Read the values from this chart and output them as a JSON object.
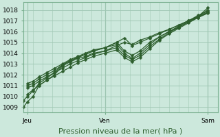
{
  "title": "",
  "xlabel": "Pression niveau de la mer( hPa )",
  "ylabel": "",
  "bg_color": "#cce8dc",
  "grid_color": "#a0c8b4",
  "line_color": "#2d5e2d",
  "xlim": [
    0,
    100
  ],
  "ylim": [
    1008.5,
    1018.7
  ],
  "yticks": [
    1009,
    1010,
    1011,
    1012,
    1013,
    1014,
    1015,
    1016,
    1017,
    1018
  ],
  "xtick_positions": [
    2,
    42,
    95
  ],
  "xtick_labels": [
    "Jeu",
    "Ven",
    "Sam"
  ],
  "vlines": [
    2,
    42,
    95
  ],
  "series": [
    {
      "x": [
        0,
        2,
        5,
        8,
        12,
        16,
        20,
        24,
        28,
        32,
        36,
        42,
        48,
        52,
        56,
        60,
        65,
        70,
        75,
        80,
        85,
        90,
        95
      ],
      "y": [
        1009.0,
        1009.5,
        1010.0,
        1011.0,
        1011.5,
        1012.0,
        1012.8,
        1013.2,
        1013.5,
        1013.7,
        1014.0,
        1014.2,
        1014.7,
        1015.0,
        1014.8,
        1015.2,
        1015.5,
        1015.9,
        1016.2,
        1016.6,
        1017.0,
        1017.4,
        1017.8
      ]
    },
    {
      "x": [
        0,
        2,
        5,
        8,
        12,
        16,
        20,
        24,
        28,
        32,
        36,
        42,
        48,
        52,
        56,
        60,
        65,
        70,
        75,
        80,
        85,
        90,
        95
      ],
      "y": [
        1009.6,
        1010.0,
        1010.5,
        1011.2,
        1011.7,
        1012.2,
        1012.9,
        1013.3,
        1013.6,
        1013.9,
        1014.2,
        1014.5,
        1015.0,
        1015.4,
        1014.7,
        1015.0,
        1015.4,
        1015.8,
        1016.2,
        1016.6,
        1017.0,
        1017.5,
        1017.9
      ]
    },
    {
      "x": [
        2,
        5,
        8,
        12,
        16,
        20,
        24,
        28,
        32,
        36,
        42,
        48,
        52,
        56,
        60,
        65,
        70,
        75,
        80,
        85,
        90,
        95
      ],
      "y": [
        1011.0,
        1011.2,
        1011.6,
        1012.0,
        1012.4,
        1012.9,
        1013.3,
        1013.6,
        1013.9,
        1014.2,
        1014.5,
        1015.0,
        1014.2,
        1013.8,
        1014.2,
        1015.0,
        1015.5,
        1016.0,
        1016.4,
        1016.9,
        1017.3,
        1017.7
      ]
    },
    {
      "x": [
        2,
        5,
        8,
        12,
        16,
        20,
        24,
        28,
        32,
        36,
        42,
        48,
        52,
        56,
        60,
        65,
        70,
        75,
        80,
        85,
        90,
        95
      ],
      "y": [
        1011.2,
        1011.4,
        1011.8,
        1012.2,
        1012.6,
        1013.0,
        1013.4,
        1013.7,
        1014.0,
        1014.3,
        1014.5,
        1014.8,
        1014.0,
        1013.5,
        1014.0,
        1014.8,
        1015.5,
        1016.0,
        1016.5,
        1017.0,
        1017.4,
        1018.0
      ]
    },
    {
      "x": [
        2,
        5,
        8,
        12,
        16,
        20,
        24,
        28,
        32,
        36,
        42,
        48,
        52,
        56,
        60,
        65,
        70,
        75,
        80,
        85,
        90,
        95
      ],
      "y": [
        1010.2,
        1010.6,
        1011.0,
        1011.5,
        1011.9,
        1012.3,
        1012.7,
        1013.1,
        1013.4,
        1013.7,
        1014.0,
        1014.3,
        1013.6,
        1013.2,
        1013.6,
        1014.4,
        1015.2,
        1015.8,
        1016.3,
        1016.8,
        1017.3,
        1017.8
      ]
    },
    {
      "x": [
        2,
        5,
        8,
        12,
        16,
        20,
        24,
        28,
        32,
        36,
        42,
        48,
        52,
        56,
        60,
        65,
        70,
        75,
        80,
        85,
        90,
        95
      ],
      "y": [
        1010.8,
        1011.0,
        1011.4,
        1011.8,
        1012.2,
        1012.6,
        1013.0,
        1013.3,
        1013.6,
        1013.9,
        1014.2,
        1014.5,
        1013.8,
        1013.4,
        1013.8,
        1014.6,
        1015.3,
        1015.9,
        1016.4,
        1016.9,
        1017.4,
        1018.2
      ]
    }
  ],
  "marker": "D",
  "markersize": 2.5,
  "linewidth": 0.9,
  "xlabel_fontsize": 8,
  "tick_fontsize": 6.5
}
